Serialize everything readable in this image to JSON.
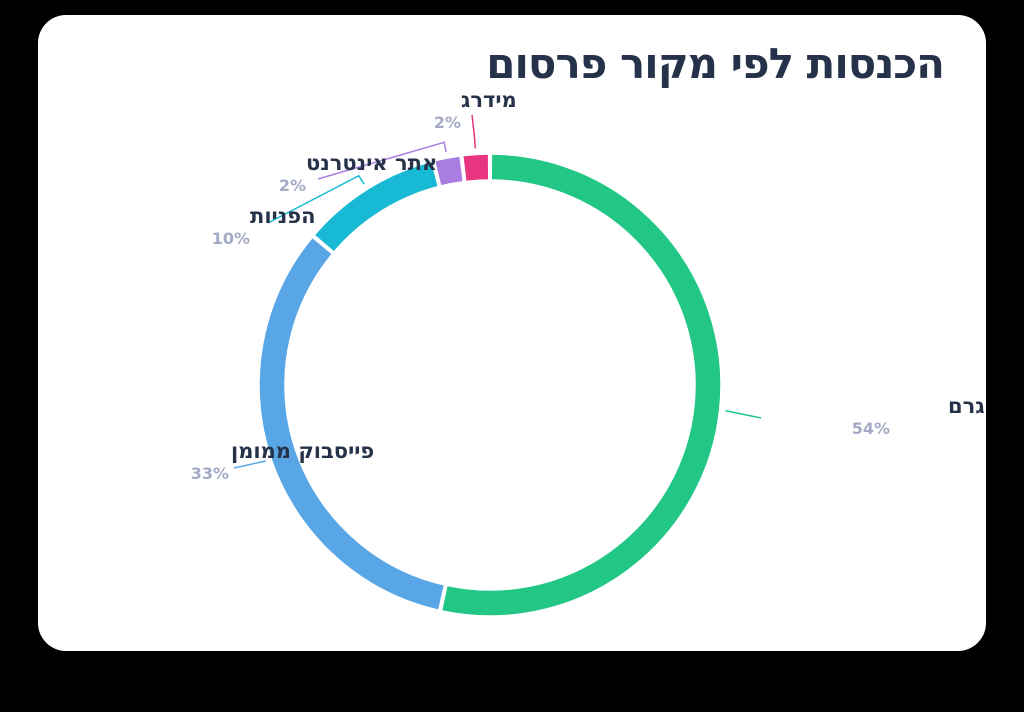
{
  "title": "הכנסות לפי מקור פרסום",
  "colors": {
    "instagram": "#22c785",
    "facebook": "#58a6e6",
    "inquiries": "#18b9d4",
    "website": "#a97ee0",
    "sign": "#e8357f",
    "title": "#25324a",
    "percent": "#a4aac6",
    "background": "#ffffff"
  },
  "chart_data": {
    "type": "pie",
    "variant": "donut",
    "title": "הכנסות לפי מקור פרסום",
    "slices": [
      {
        "label": "לידים מאינסטגרם",
        "percent_label": "54%",
        "value": 54,
        "color": "#22c785"
      },
      {
        "label": "פייסבוק ממומן",
        "percent_label": "33%",
        "value": 33,
        "color": "#58a6e6"
      },
      {
        "label": "הפניות",
        "percent_label": "10%",
        "value": 10,
        "color": "#18b9d4"
      },
      {
        "label": "אתר אינטרנט",
        "percent_label": "2%",
        "value": 2,
        "color": "#a97ee0"
      },
      {
        "label": "מידרג",
        "percent_label": "2%",
        "value": 2,
        "color": "#e8357f"
      }
    ]
  }
}
